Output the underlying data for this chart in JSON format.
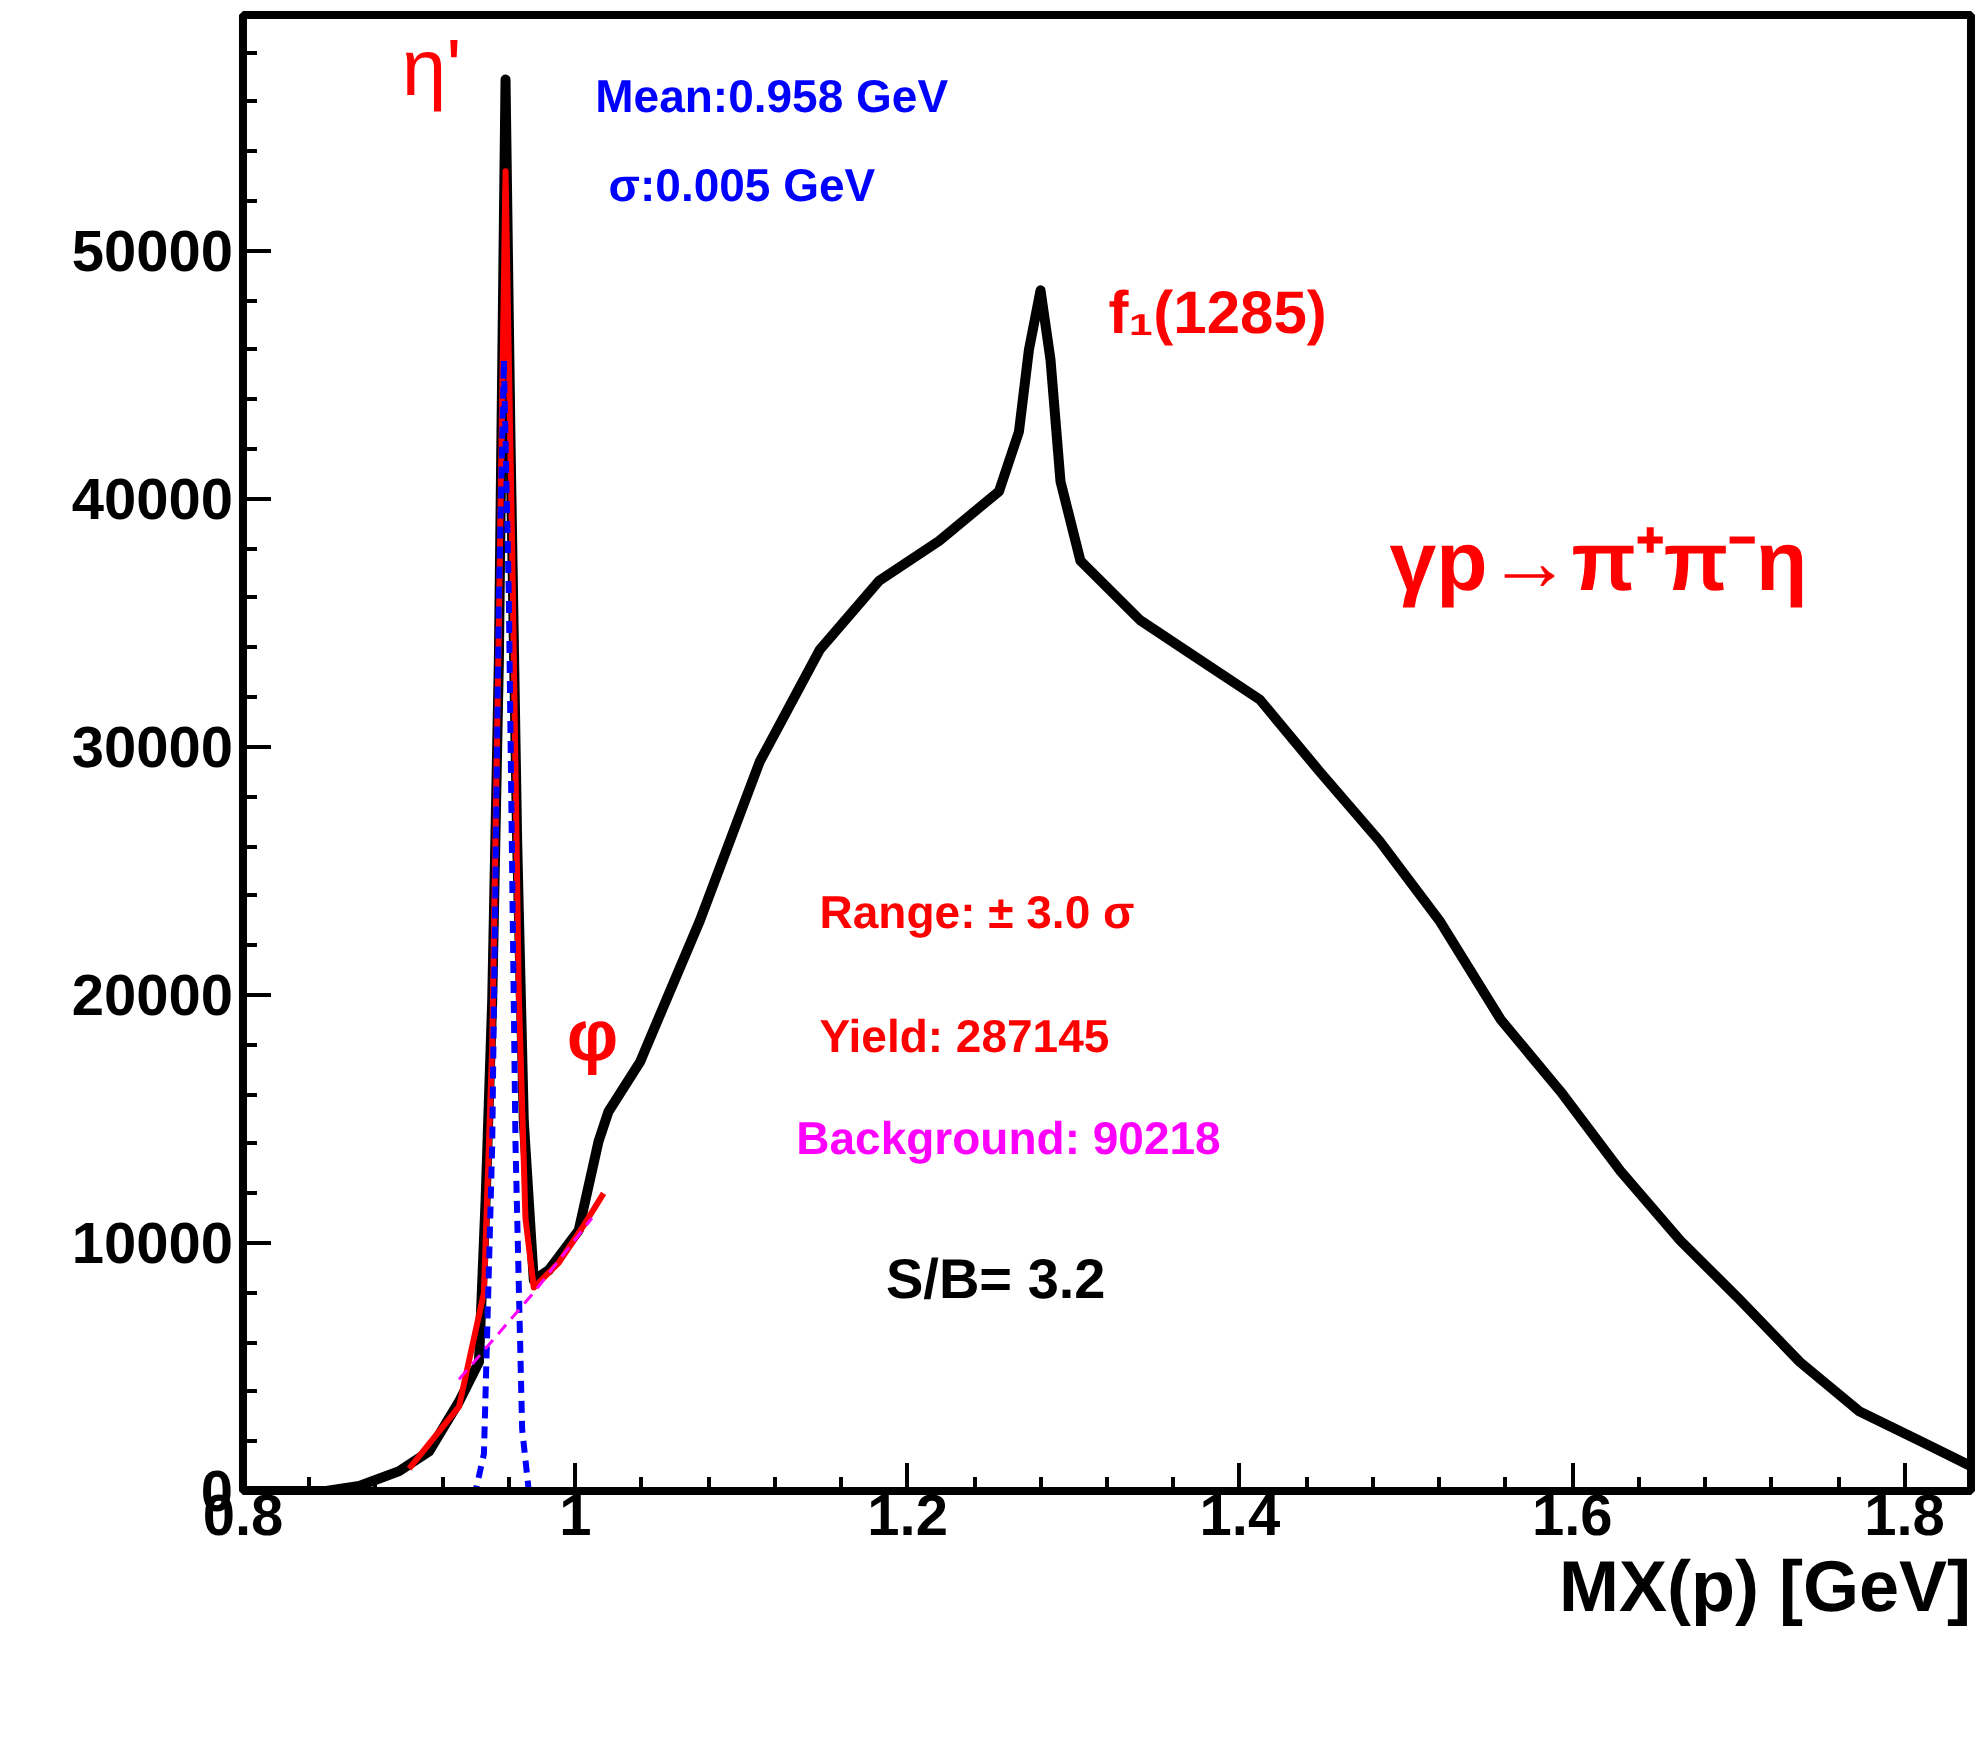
{
  "chart_data": {
    "type": "line",
    "xlabel": "MX(p) [GeV]",
    "xlim": [
      0.8,
      1.84
    ],
    "ylim": [
      0,
      59500
    ],
    "xticks": [
      0.8,
      {
        "value": 1.0,
        "label": "1"
      },
      1.2,
      1.4,
      1.6,
      1.8
    ],
    "yticks": [
      0,
      10000,
      20000,
      30000,
      40000,
      50000
    ],
    "grid": false,
    "annotations": [
      {
        "text": "η'",
        "x": 0.958,
        "y": 56900
      },
      "Mean:0.958 GeV",
      "σ:0.005 GeV",
      {
        "text": "f₁(1285)",
        "x": 1.28,
        "y": 48400
      },
      "γp→π⁺π⁻η",
      "Range: ± 3.0 σ",
      {
        "text": "φ",
        "x": 1.02,
        "y": 15300
      },
      "Yield: 287145",
      "Background: 90218",
      "S/B= 3.2"
    ],
    "series": [
      {
        "color": "#000000",
        "x": [
          0.8,
          0.85,
          0.87,
          0.894,
          0.912,
          0.93,
          0.942,
          0.946,
          0.95,
          0.954,
          0.958,
          0.961,
          0.965,
          0.969,
          0.975,
          0.984,
          1.002,
          1.014,
          1.02,
          1.039,
          1.075,
          1.111,
          1.147,
          1.183,
          1.219,
          1.255,
          1.267,
          1.273,
          1.28,
          1.286,
          1.292,
          1.304,
          1.34,
          1.376,
          1.412,
          1.448,
          1.484,
          1.52,
          1.557,
          1.593,
          1.629,
          1.665,
          1.701,
          1.737,
          1.773,
          1.81,
          1.84
        ],
        "values": [
          0,
          0,
          200,
          800,
          1600,
          3600,
          5200,
          11700,
          19800,
          33500,
          56900,
          42300,
          26200,
          14900,
          8500,
          8900,
          10500,
          14100,
          15300,
          17300,
          23000,
          29400,
          33900,
          36700,
          38300,
          40300,
          42700,
          46000,
          48400,
          45600,
          40700,
          37500,
          35100,
          33500,
          31900,
          29000,
          26200,
          23000,
          19000,
          16100,
          12900,
          10100,
          7700,
          5200,
          3200,
          2000,
          1000
        ]
      },
      {
        "color": "#ff0000",
        "x": [
          0.9,
          0.93,
          0.945,
          0.95,
          0.954,
          0.958,
          0.962,
          0.966,
          0.97,
          0.975,
          0.99,
          1.005,
          1.017
        ],
        "values": [
          900,
          3400,
          8000,
          18000,
          35000,
          53200,
          38000,
          20000,
          11000,
          8200,
          9200,
          10700,
          12000
        ]
      },
      {
        "line_style": "dashed",
        "color": "#0000ff",
        "x": [
          0.9,
          0.94,
          0.945,
          0.95,
          0.954,
          0.957,
          0.96,
          0.964,
          0.968,
          0.972,
          1.0
        ],
        "values": [
          0,
          0,
          1500,
          14000,
          36000,
          45600,
          36000,
          14000,
          2500,
          0,
          0
        ]
      },
      {
        "line_style": "dashed",
        "color": "#ff00ff",
        "x": [
          0.93,
          0.975,
          1.01
        ],
        "values": [
          4500,
          8000,
          11000
        ]
      }
    ]
  }
}
